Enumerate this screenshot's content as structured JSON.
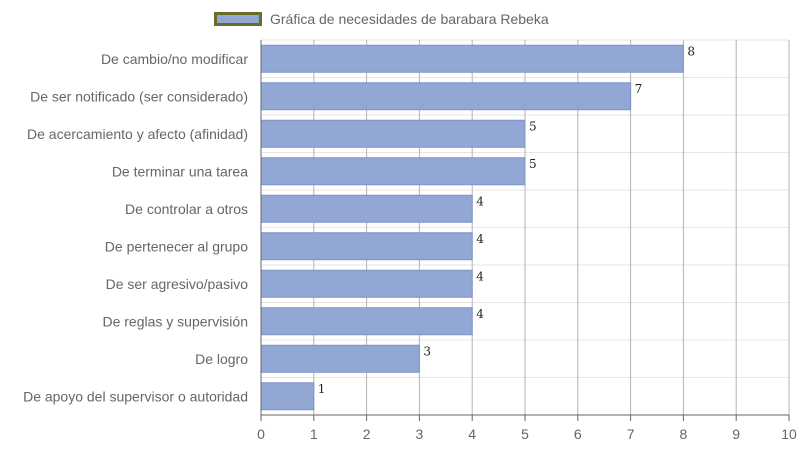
{
  "legend": {
    "label": "Gráfica de necesidades de barabara Rebeka",
    "swatch_fill": "#93a7d4",
    "swatch_border": "#6b6b2a"
  },
  "colors": {
    "bar": "#93a7d4",
    "bar_edge": "#7d93c8",
    "grid": "#b3b3b3",
    "axis": "#666666",
    "text": "#666666"
  },
  "chart_data": {
    "type": "bar",
    "orientation": "horizontal",
    "title": "",
    "xlabel": "",
    "ylabel": "",
    "xlim": [
      0,
      10
    ],
    "xticks": [
      0,
      1,
      2,
      3,
      4,
      5,
      6,
      7,
      8,
      9,
      10
    ],
    "grid": true,
    "legend_position": "top",
    "categories": [
      "De cambio/no modificar",
      "De ser notificado (ser considerado)",
      "De acercamiento y afecto (afinidad)",
      "De terminar una tarea",
      "De controlar a otros",
      "De pertenecer al grupo",
      "De ser agresivo/pasivo",
      "De reglas y supervisión",
      "De logro",
      "De apoyo del supervisor o autoridad"
    ],
    "series": [
      {
        "name": "Gráfica de necesidades de barabara Rebeka",
        "values": [
          8,
          7,
          5,
          5,
          4,
          4,
          4,
          4,
          3,
          1
        ]
      }
    ]
  }
}
